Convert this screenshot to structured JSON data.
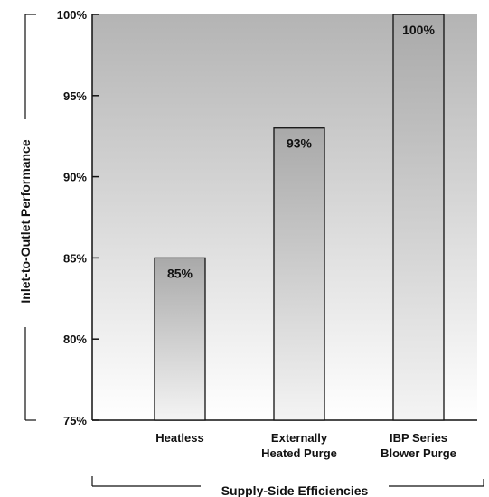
{
  "chart_data": {
    "type": "bar",
    "categories": [
      [
        "Heatless"
      ],
      [
        "Externally",
        "Heated Purge"
      ],
      [
        "IBP Series",
        "Blower Purge"
      ]
    ],
    "values": [
      85,
      93,
      100
    ],
    "data_labels": [
      "85%",
      "93%",
      "100%"
    ],
    "ylabel": "Inlet-to-Outlet Performance",
    "xlabel": "Supply-Side Efficiencies",
    "ylim": [
      75,
      100
    ],
    "yticks": [
      {
        "value": 75,
        "label": "75%"
      },
      {
        "value": 80,
        "label": "80%"
      },
      {
        "value": 85,
        "label": "85%"
      },
      {
        "value": 90,
        "label": "90%"
      },
      {
        "value": 95,
        "label": "95%"
      },
      {
        "value": 100,
        "label": "100%"
      }
    ],
    "grid": false,
    "legend": "none",
    "colors": {
      "plot_bg_top": "#b4b4b4",
      "plot_bg_bottom": "#ffffff",
      "bar_top": "#a9a9a9",
      "bar_bottom": "#f4f4f4",
      "stroke": "#111111"
    }
  }
}
